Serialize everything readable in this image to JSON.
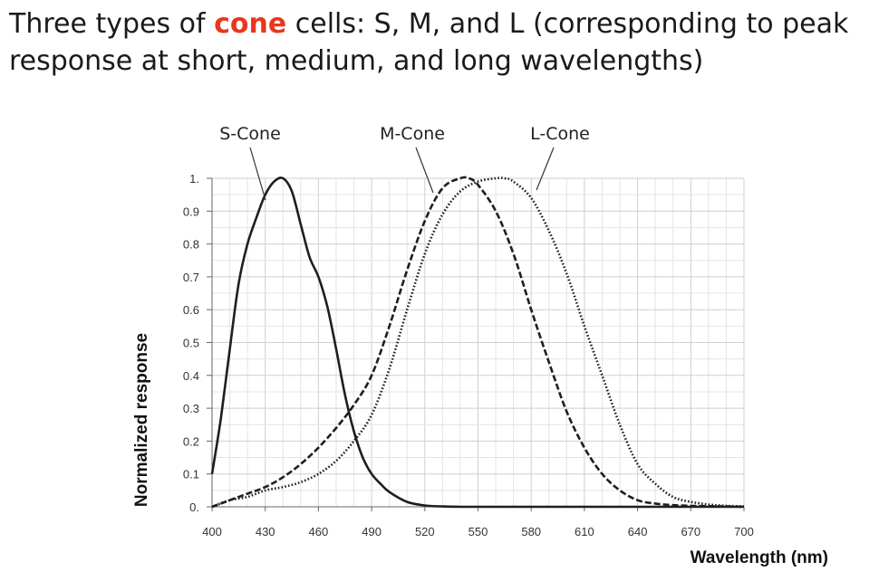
{
  "title": {
    "part1": "Three types of ",
    "highlight": "cone",
    "part2": " cells: S, M, and L (corresponding to peak response at short, medium, and long wavelengths)",
    "highlight_color": "#e8371e"
  },
  "chart_data": {
    "type": "line",
    "xlabel": "Wavelength (nm)",
    "ylabel": "Normalized response",
    "xlim": [
      400,
      700
    ],
    "ylim": [
      0,
      1
    ],
    "x_ticks": [
      "400",
      "430",
      "460",
      "490",
      "520",
      "550",
      "580",
      "610",
      "640",
      "670",
      "700"
    ],
    "y_ticks": [
      "0.",
      "0.1",
      "0.2",
      "0.3",
      "0.4",
      "0.5",
      "0.6",
      "0.7",
      "0.8",
      "0.9",
      "1."
    ],
    "grid": true,
    "series": [
      {
        "name": "S-Cone",
        "style": "solid",
        "x": [
          400,
          405,
          410,
          415,
          420,
          425,
          430,
          435,
          440,
          445,
          450,
          455,
          460,
          465,
          470,
          475,
          480,
          485,
          490,
          495,
          500,
          510,
          520,
          530,
          540,
          560,
          600,
          650,
          700
        ],
        "y": [
          0.1,
          0.27,
          0.48,
          0.68,
          0.8,
          0.88,
          0.95,
          0.99,
          1.0,
          0.96,
          0.86,
          0.76,
          0.7,
          0.61,
          0.48,
          0.34,
          0.23,
          0.15,
          0.1,
          0.07,
          0.045,
          0.015,
          0.004,
          0.001,
          0.0,
          0.0,
          0.0,
          0.0,
          0.0
        ]
      },
      {
        "name": "M-Cone",
        "style": "dashed",
        "x": [
          400,
          410,
          420,
          430,
          440,
          450,
          460,
          470,
          480,
          490,
          500,
          510,
          520,
          530,
          540,
          545,
          550,
          560,
          570,
          580,
          590,
          600,
          610,
          620,
          630,
          640,
          650,
          660,
          670,
          680,
          690,
          700
        ],
        "y": [
          0.0,
          0.02,
          0.04,
          0.06,
          0.09,
          0.13,
          0.18,
          0.24,
          0.31,
          0.4,
          0.55,
          0.72,
          0.87,
          0.97,
          1.0,
          1.0,
          0.98,
          0.9,
          0.77,
          0.6,
          0.44,
          0.29,
          0.18,
          0.1,
          0.05,
          0.02,
          0.01,
          0.005,
          0.003,
          0.002,
          0.001,
          0.0
        ]
      },
      {
        "name": "L-Cone",
        "style": "dotted",
        "x": [
          400,
          410,
          420,
          430,
          440,
          450,
          460,
          470,
          480,
          490,
          500,
          510,
          520,
          530,
          540,
          550,
          560,
          565,
          570,
          580,
          590,
          600,
          610,
          620,
          630,
          640,
          650,
          660,
          670,
          680,
          690,
          700
        ],
        "y": [
          0.0,
          0.02,
          0.03,
          0.05,
          0.06,
          0.075,
          0.1,
          0.14,
          0.2,
          0.28,
          0.42,
          0.6,
          0.77,
          0.89,
          0.96,
          0.99,
          1.0,
          1.0,
          0.99,
          0.94,
          0.84,
          0.71,
          0.55,
          0.4,
          0.25,
          0.13,
          0.07,
          0.03,
          0.015,
          0.007,
          0.003,
          0.001
        ]
      }
    ]
  }
}
